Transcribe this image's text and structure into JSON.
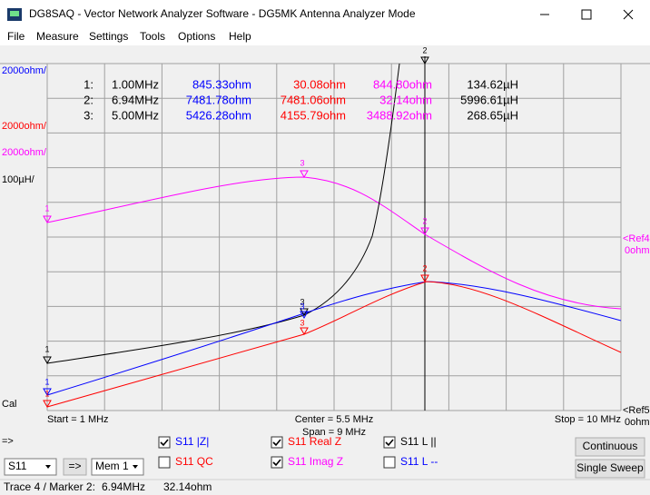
{
  "window": {
    "title": "DG8SAQ  -  Vector Network Analyzer Software - DG5MK Antenna Analyzer Mode"
  },
  "menu": [
    "File",
    "Measure",
    "Settings",
    "Tools",
    "Options",
    "Help"
  ],
  "plot": {
    "left_labels": [
      "2000ohm/",
      "2000ohm/",
      "2000ohm/",
      "100µH/",
      "Cal"
    ],
    "right_labels": [
      "<Ref4",
      "0ohm",
      "<Ref5",
      "0ohm"
    ],
    "marker_rows": [
      [
        "1:",
        "1.00MHz",
        "845.33ohm",
        "30.08ohm",
        "844.80ohm",
        "134.62µH"
      ],
      [
        "2:",
        "6.94MHz",
        "7481.78ohm",
        "7481.06ohm",
        "32.14ohm",
        "5996.61µH"
      ],
      [
        "3:",
        "5.00MHz",
        "5426.28ohm",
        "4155.79ohm",
        "3488.92ohm",
        "268.65µH"
      ]
    ],
    "marker_tags": [
      "1",
      "1",
      "1",
      "1",
      "3",
      "3",
      "3",
      "3",
      "2",
      "2",
      "2"
    ],
    "start": "Start = 1 MHz",
    "center": "Center = 5.5 MHz",
    "span": "Span = 9 MHz",
    "stop": "Stop = 10 MHz"
  },
  "arrow": "=>",
  "controls": {
    "trace_select": "S11",
    "copy_button": "=>",
    "memory_select": "Mem 1",
    "traces": [
      {
        "label": "S11 |Z|",
        "checked": true,
        "color": "#0000ff"
      },
      {
        "label": "S11 QC",
        "checked": false,
        "color": "#ff0000"
      },
      {
        "label": "S11 Real Z",
        "checked": true,
        "color": "#ff0000"
      },
      {
        "label": "S11 Imag Z",
        "checked": true,
        "color": "#ff00ff"
      },
      {
        "label": "S11 L ||",
        "checked": true,
        "color": "#000000"
      },
      {
        "label": "S11 L --",
        "checked": false,
        "color": "#0000ff"
      }
    ],
    "buttons": [
      "Continuous",
      "Single Sweep"
    ]
  },
  "status": [
    "Trace 4 / Marker 2:",
    "6.94MHz",
    "32.14ohm"
  ]
}
